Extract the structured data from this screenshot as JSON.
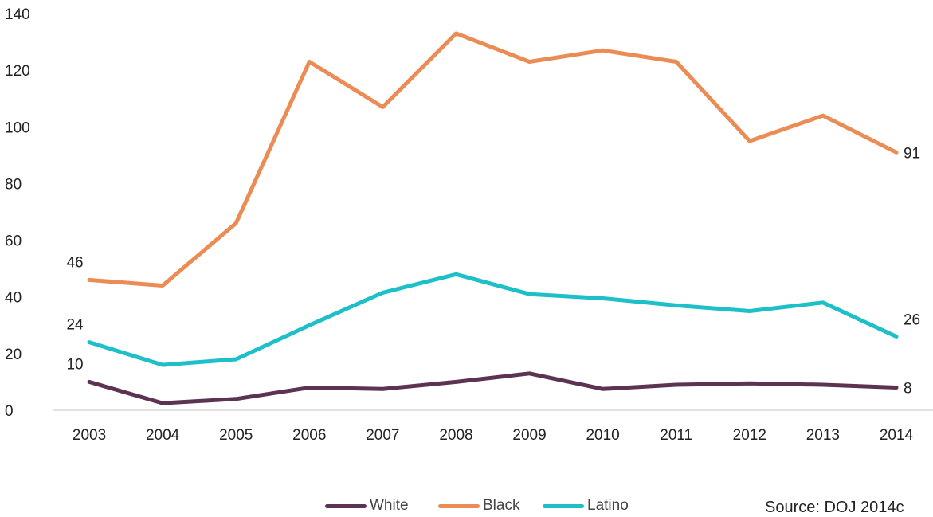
{
  "chart_data": {
    "type": "line",
    "title": "",
    "xlabel": "",
    "ylabel": "",
    "x": [
      "2003",
      "2004",
      "2005",
      "2006",
      "2007",
      "2008",
      "2009",
      "2010",
      "2011",
      "2012",
      "2013",
      "2014"
    ],
    "ylim": [
      0,
      140
    ],
    "yticks": [
      0,
      20,
      40,
      60,
      80,
      100,
      120,
      140
    ],
    "grid": false,
    "legend_position": "bottom",
    "series": [
      {
        "name": "White",
        "color": "#5c3352",
        "values": [
          10,
          2.5,
          4,
          8,
          7.5,
          10,
          13,
          7.5,
          9,
          9.5,
          9,
          8
        ]
      },
      {
        "name": "Black",
        "color": "#ec8c55",
        "values": [
          46,
          44,
          66,
          123,
          107,
          133,
          123,
          127,
          123,
          95,
          104,
          91
        ]
      },
      {
        "name": "Latino",
        "color": "#1dbfc9",
        "values": [
          24,
          16,
          18,
          30,
          41.5,
          48,
          41,
          39.5,
          37,
          35,
          38,
          26
        ]
      }
    ],
    "data_labels": [
      {
        "series": "Black",
        "index": 0,
        "text": "46"
      },
      {
        "series": "Black",
        "index": 11,
        "text": "91"
      },
      {
        "series": "Latino",
        "index": 0,
        "text": "24"
      },
      {
        "series": "Latino",
        "index": 11,
        "text": "26"
      },
      {
        "series": "White",
        "index": 0,
        "text": "10"
      },
      {
        "series": "White",
        "index": 11,
        "text": "8"
      }
    ]
  },
  "source": "Source: DOJ 2014c"
}
